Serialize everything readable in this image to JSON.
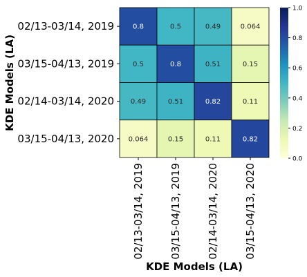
{
  "chart_data": {
    "type": "heatmap",
    "title": "",
    "xlabel": "KDE Models (LA)",
    "ylabel": "KDE Models (LA)",
    "rows": [
      "02/13-03/14, 2019",
      "03/15-04/13, 2019",
      "02/14-03/14, 2020",
      "03/15-04/13, 2020"
    ],
    "columns": [
      "02/13-03/14, 2019",
      "03/15-04/13, 2019",
      "02/14-03/14, 2020",
      "03/15-04/13, 2020"
    ],
    "values": [
      [
        0.8,
        0.5,
        0.49,
        0.064
      ],
      [
        0.5,
        0.8,
        0.51,
        0.15
      ],
      [
        0.49,
        0.51,
        0.82,
        0.11
      ],
      [
        0.064,
        0.15,
        0.11,
        0.82
      ]
    ],
    "colormap": "YlGnBu",
    "vmin": 0.0,
    "vmax": 1.0,
    "colorbar_ticks": [
      "0.0",
      "0.2",
      "0.4",
      "0.6",
      "0.8",
      "1.0"
    ]
  }
}
